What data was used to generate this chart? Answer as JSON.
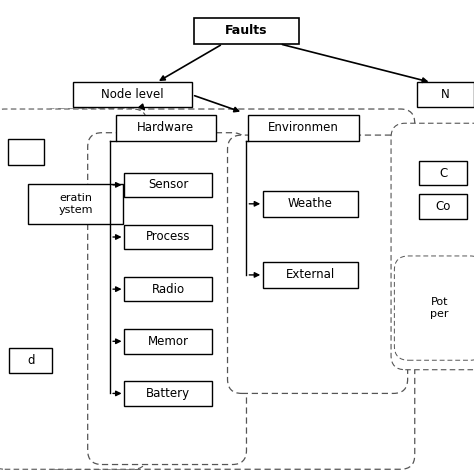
{
  "title": "Faults",
  "node_level_label": "Node level",
  "hardware_label": "Hardware",
  "environment_label": "Environmen",
  "network_label": "N",
  "hardware_children": [
    "Sensor",
    "Process",
    "Radio",
    "Memor",
    "Battery"
  ],
  "environment_children": [
    "Weathe",
    "External"
  ],
  "left_box2_line1": "eratin",
  "left_box2_line2": "ystem",
  "left_box3": "d",
  "right_box1": "C",
  "right_box2": "Co",
  "right_box3_line1": "Pot",
  "right_box3_line2": "per",
  "bg_color": "#ffffff",
  "text_color": "#000000",
  "arrow_color": "#000000"
}
